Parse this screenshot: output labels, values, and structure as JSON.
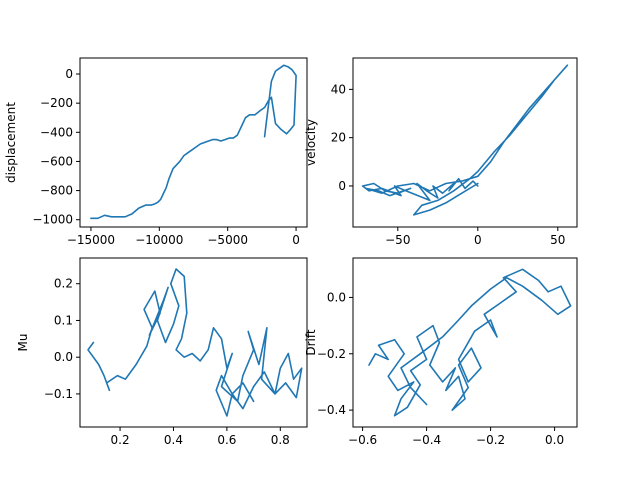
{
  "line_color": "#1f77b4",
  "chart_data": [
    {
      "type": "line",
      "xlabel": "",
      "ylabel": "displacement",
      "xlim": [
        -15800,
        800
      ],
      "ylim": [
        -1050,
        110
      ],
      "xticks": [
        -15000,
        -10000,
        -5000,
        0
      ],
      "xtick_labels": [
        "−15000",
        "−10000",
        "−5000",
        "0"
      ],
      "yticks": [
        -1000,
        -800,
        -600,
        -400,
        -200,
        0
      ],
      "ytick_labels": [
        "−1000",
        "−800",
        "−600",
        "−400",
        "−200",
        "0"
      ],
      "x": [
        -2300,
        -2200,
        -2000,
        -1800,
        -1500,
        -1200,
        -900,
        -600,
        -300,
        0,
        -150,
        -400,
        -700,
        -1100,
        -1500,
        -1800,
        -2000,
        -2300,
        -2600,
        -3000,
        -3400,
        -3700,
        -4000,
        -4300,
        -4600,
        -4900,
        -5200,
        -5500,
        -5800,
        -6100,
        -6400,
        -6700,
        -7000,
        -7300,
        -7600,
        -7900,
        -8200,
        -8500,
        -8800,
        -9000,
        -9300,
        -9500,
        -9700,
        -9900,
        -10100,
        -10300,
        -10600,
        -11000,
        -11500,
        -12000,
        -12500,
        -13000,
        -13500,
        -14000,
        -14500,
        -15000
      ],
      "y": [
        -430,
        -350,
        -200,
        -50,
        20,
        40,
        60,
        50,
        30,
        -10,
        -350,
        -380,
        -410,
        -380,
        -340,
        -160,
        -180,
        -230,
        -250,
        -280,
        -280,
        -300,
        -360,
        -420,
        -440,
        -440,
        -450,
        -460,
        -450,
        -450,
        -460,
        -470,
        -480,
        -500,
        -520,
        -540,
        -560,
        -600,
        -630,
        -650,
        -720,
        -780,
        -820,
        -860,
        -880,
        -890,
        -900,
        -900,
        -920,
        -960,
        -980,
        -980,
        -980,
        -970,
        -990,
        -990
      ]
    },
    {
      "type": "line",
      "xlabel": "",
      "ylabel": "velocity",
      "xlim": [
        -78,
        62
      ],
      "ylim": [
        -17,
        53
      ],
      "xticks": [
        -50,
        0,
        50
      ],
      "xtick_labels": [
        "−50",
        "0",
        "50"
      ],
      "yticks": [
        0,
        20,
        40
      ],
      "ytick_labels": [
        "0",
        "20",
        "40"
      ],
      "x": [
        0,
        -3,
        -8,
        -12,
        -18,
        -15,
        -22,
        -28,
        -25,
        -32,
        -38,
        -30,
        -45,
        -52,
        -48,
        -60,
        -68,
        -72,
        -65,
        -58,
        -50,
        -42,
        -55,
        -62,
        -70,
        -60,
        -50,
        -40,
        -30,
        -20,
        -10,
        0,
        8,
        16,
        24,
        32,
        40,
        48,
        56,
        48,
        40,
        30,
        20,
        10,
        0,
        -5,
        -15,
        -25,
        -35,
        -40,
        -30,
        -20,
        -10,
        0
      ],
      "y": [
        0,
        2,
        -1,
        3,
        -2,
        1,
        -3,
        0,
        -5,
        -2,
        1,
        -6,
        -2,
        0,
        -4,
        -1,
        -2,
        0,
        1,
        -2,
        -3,
        -1,
        -4,
        -2,
        -1,
        -3,
        0,
        1,
        -2,
        1,
        2,
        4,
        10,
        18,
        25,
        32,
        38,
        44,
        50,
        44,
        37,
        29,
        21,
        14,
        6,
        3,
        -2,
        -6,
        -8,
        -12,
        -10,
        -7,
        -3,
        1
      ]
    },
    {
      "type": "line",
      "xlabel": "",
      "ylabel": "Mu",
      "xlim": [
        0.05,
        0.9
      ],
      "ylim": [
        -0.19,
        0.27
      ],
      "xticks": [
        0.2,
        0.4,
        0.6,
        0.8
      ],
      "xtick_labels": [
        "0.2",
        "0.4",
        "0.6",
        "0.8"
      ],
      "yticks": [
        -0.1,
        0.0,
        0.1,
        0.2
      ],
      "ytick_labels": [
        "−0.1",
        "0.0",
        "0.1",
        "0.2"
      ],
      "x": [
        0.1,
        0.08,
        0.12,
        0.14,
        0.16,
        0.15,
        0.19,
        0.22,
        0.26,
        0.3,
        0.32,
        0.29,
        0.33,
        0.35,
        0.31,
        0.36,
        0.38,
        0.34,
        0.37,
        0.4,
        0.42,
        0.39,
        0.41,
        0.44,
        0.45,
        0.43,
        0.41,
        0.44,
        0.47,
        0.5,
        0.53,
        0.55,
        0.58,
        0.6,
        0.62,
        0.58,
        0.64,
        0.66,
        0.7,
        0.68,
        0.72,
        0.75,
        0.73,
        0.78,
        0.8,
        0.83,
        0.85,
        0.88,
        0.86,
        0.82,
        0.78,
        0.74,
        0.7,
        0.66,
        0.62,
        0.6,
        0.56,
        0.58,
        0.62,
        0.66,
        0.7
      ],
      "y": [
        0.04,
        0.02,
        -0.02,
        -0.05,
        -0.09,
        -0.07,
        -0.05,
        -0.06,
        -0.02,
        0.03,
        0.08,
        0.13,
        0.18,
        0.12,
        0.06,
        0.15,
        0.19,
        0.1,
        0.04,
        0.09,
        0.14,
        0.2,
        0.24,
        0.22,
        0.12,
        0.05,
        0.02,
        0.0,
        0.01,
        -0.01,
        0.02,
        0.08,
        0.05,
        -0.03,
        0.01,
        -0.08,
        -0.12,
        -0.05,
        0.02,
        0.07,
        -0.02,
        0.08,
        -0.06,
        -0.1,
        -0.03,
        0.01,
        -0.06,
        -0.03,
        -0.11,
        -0.07,
        -0.1,
        -0.04,
        -0.08,
        -0.14,
        -0.1,
        -0.16,
        -0.09,
        -0.05,
        -0.1,
        -0.07,
        -0.12
      ]
    },
    {
      "type": "line",
      "xlabel": "",
      "ylabel": "Drift",
      "xlim": [
        -0.63,
        0.07
      ],
      "ylim": [
        -0.46,
        0.14
      ],
      "xticks": [
        -0.6,
        -0.4,
        -0.2,
        0.0
      ],
      "xtick_labels": [
        "−0.6",
        "−0.4",
        "−0.2",
        "0.0"
      ],
      "yticks": [
        -0.4,
        -0.2,
        0.0
      ],
      "ytick_labels": [
        "−0.4",
        "−0.2",
        "0.0"
      ],
      "x": [
        -0.58,
        -0.56,
        -0.52,
        -0.55,
        -0.5,
        -0.47,
        -0.52,
        -0.49,
        -0.44,
        -0.48,
        -0.5,
        -0.46,
        -0.42,
        -0.45,
        -0.4,
        -0.43,
        -0.38,
        -0.36,
        -0.39,
        -0.35,
        -0.31,
        -0.34,
        -0.3,
        -0.28,
        -0.32,
        -0.27,
        -0.3,
        -0.26,
        -0.23,
        -0.27,
        -0.3,
        -0.25,
        -0.2,
        -0.18,
        -0.22,
        -0.17,
        -0.12,
        -0.16,
        -0.1,
        -0.05,
        -0.02,
        0.02,
        0.05,
        0.01,
        -0.04,
        -0.1,
        -0.15,
        -0.2,
        -0.26,
        -0.3,
        -0.35,
        -0.42,
        -0.48,
        -0.45,
        -0.4
      ],
      "y": [
        -0.24,
        -0.2,
        -0.22,
        -0.17,
        -0.15,
        -0.2,
        -0.28,
        -0.33,
        -0.3,
        -0.36,
        -0.42,
        -0.39,
        -0.31,
        -0.26,
        -0.22,
        -0.14,
        -0.1,
        -0.16,
        -0.24,
        -0.3,
        -0.25,
        -0.33,
        -0.28,
        -0.36,
        -0.4,
        -0.32,
        -0.24,
        -0.18,
        -0.25,
        -0.3,
        -0.22,
        -0.12,
        -0.08,
        -0.14,
        -0.06,
        -0.02,
        0.02,
        0.07,
        0.1,
        0.06,
        0.02,
        0.04,
        -0.03,
        -0.06,
        -0.01,
        0.04,
        0.07,
        0.03,
        -0.03,
        -0.08,
        -0.14,
        -0.2,
        -0.25,
        -0.32,
        -0.38
      ]
    }
  ]
}
